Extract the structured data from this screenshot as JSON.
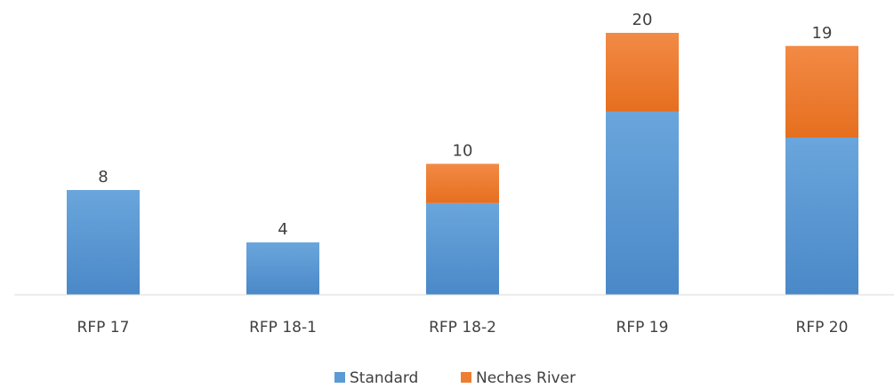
{
  "chart_data": {
    "type": "bar",
    "stacked": true,
    "categories": [
      "RFP 17",
      "RFP 18-1",
      "RFP 18-2",
      "RFP 19",
      "RFP 20"
    ],
    "series": [
      {
        "name": "Standard",
        "values": [
          8,
          4,
          7,
          14,
          12
        ],
        "color": "#5b9bd5"
      },
      {
        "name": "Neches River",
        "values": [
          0,
          0,
          3,
          6,
          7
        ],
        "color": "#ed7d31"
      }
    ],
    "totals": [
      8,
      4,
      10,
      20,
      19
    ],
    "ylim": [
      0,
      20
    ],
    "grid": false,
    "legend_position": "bottom"
  }
}
